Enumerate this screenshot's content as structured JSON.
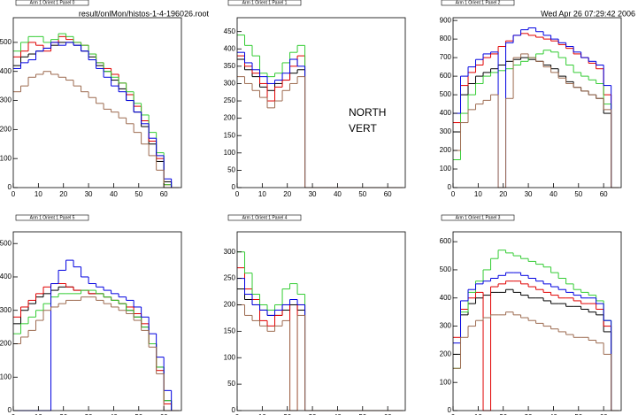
{
  "chart_data": [
    {
      "type": "histogram",
      "title": "Arm 1 Orient 1 Panel 0",
      "subtitle": "result/onlMon/histos-1-4-196026.root",
      "bins": [
        0,
        3,
        6,
        9,
        12,
        15,
        18,
        21,
        24,
        27,
        30,
        33,
        36,
        39,
        42,
        45,
        48,
        51,
        54,
        57,
        60,
        63,
        66
      ],
      "xlim": [
        0,
        67
      ],
      "xticks": [
        0,
        10,
        20,
        30,
        40,
        50,
        60
      ],
      "ylim": [
        0,
        585
      ],
      "yticks": [
        0,
        100,
        200,
        300,
        400,
        500
      ],
      "series": [
        {
          "color": "#000000",
          "values": [
            420,
            450,
            460,
            470,
            480,
            490,
            500,
            500,
            490,
            470,
            450,
            420,
            400,
            370,
            340,
            300,
            260,
            210,
            150,
            90,
            20,
            0
          ]
        },
        {
          "color": "#e00000",
          "values": [
            450,
            470,
            500,
            490,
            470,
            500,
            520,
            510,
            500,
            490,
            460,
            430,
            410,
            390,
            360,
            320,
            280,
            230,
            160,
            100,
            10,
            0
          ]
        },
        {
          "color": "#33cc33",
          "values": [
            470,
            500,
            520,
            520,
            500,
            510,
            530,
            520,
            500,
            490,
            460,
            430,
            400,
            380,
            360,
            330,
            290,
            250,
            190,
            120,
            10,
            0
          ]
        },
        {
          "color": "#0000e0",
          "values": [
            410,
            430,
            440,
            470,
            480,
            500,
            490,
            500,
            490,
            470,
            440,
            410,
            380,
            350,
            330,
            300,
            260,
            220,
            170,
            110,
            30,
            0
          ]
        },
        {
          "color": "#9c6a4f",
          "values": [
            330,
            350,
            380,
            390,
            400,
            390,
            380,
            370,
            350,
            330,
            310,
            290,
            270,
            260,
            240,
            220,
            190,
            150,
            110,
            60,
            0,
            0
          ]
        }
      ]
    },
    {
      "type": "histogram",
      "title": "Arm 1 Orient 1 Panel 1",
      "annotations": [
        "NORTH",
        "VERT"
      ],
      "bins": [
        0,
        3,
        6,
        9,
        12,
        15,
        18,
        21,
        24,
        27,
        30,
        33,
        36,
        39,
        42,
        45,
        48,
        51,
        54,
        57,
        60,
        63,
        66
      ],
      "xlim": [
        0,
        67
      ],
      "xticks": [
        0,
        10,
        20,
        30,
        40,
        50,
        60
      ],
      "ylim": [
        0,
        490
      ],
      "yticks": [
        0,
        50,
        100,
        150,
        200,
        250,
        300,
        350,
        400,
        450
      ],
      "series": [
        {
          "color": "#000000",
          "values": [
            370,
            340,
            320,
            290,
            280,
            300,
            310,
            330,
            340,
            0,
            0,
            0,
            0,
            0,
            0,
            0,
            0,
            0,
            0,
            0,
            0,
            0
          ]
        },
        {
          "color": "#e00000",
          "values": [
            380,
            350,
            330,
            300,
            250,
            290,
            310,
            350,
            380,
            0,
            0,
            0,
            0,
            0,
            0,
            0,
            0,
            0,
            0,
            0,
            0,
            0
          ]
        },
        {
          "color": "#33cc33",
          "values": [
            440,
            410,
            380,
            330,
            320,
            330,
            360,
            390,
            410,
            0,
            0,
            0,
            0,
            0,
            0,
            0,
            0,
            0,
            0,
            0,
            0,
            0
          ]
        },
        {
          "color": "#0000e0",
          "values": [
            390,
            360,
            340,
            320,
            300,
            310,
            330,
            370,
            350,
            0,
            0,
            0,
            0,
            0,
            0,
            0,
            0,
            0,
            0,
            0,
            0,
            0
          ]
        },
        {
          "color": "#9c6a4f",
          "values": [
            320,
            300,
            280,
            260,
            230,
            250,
            280,
            300,
            320,
            0,
            0,
            0,
            0,
            0,
            0,
            0,
            0,
            0,
            0,
            0,
            0,
            0
          ]
        }
      ]
    },
    {
      "type": "histogram",
      "title": "Arm 1 Orient 1 Panel 2",
      "subtitle": "Wed Apr 26 07:29:42 2006",
      "bins": [
        0,
        3,
        6,
        9,
        12,
        15,
        18,
        21,
        24,
        27,
        30,
        33,
        36,
        39,
        42,
        45,
        48,
        51,
        54,
        57,
        60,
        63,
        66
      ],
      "xlim": [
        0,
        67
      ],
      "xticks": [
        0,
        10,
        20,
        30,
        40,
        50,
        60
      ],
      "ylim": [
        0,
        915
      ],
      "yticks": [
        0,
        100,
        200,
        300,
        400,
        500,
        600,
        700,
        800,
        900
      ],
      "series": [
        {
          "color": "#000000",
          "values": [
            300,
            500,
            560,
            600,
            620,
            640,
            660,
            680,
            690,
            700,
            690,
            680,
            660,
            640,
            600,
            570,
            540,
            520,
            500,
            480,
            400,
            0
          ]
        },
        {
          "color": "#e00000",
          "values": [
            350,
            550,
            620,
            660,
            700,
            720,
            760,
            790,
            820,
            830,
            820,
            810,
            800,
            790,
            770,
            750,
            720,
            700,
            670,
            640,
            500,
            0
          ]
        },
        {
          "color": "#33cc33",
          "values": [
            150,
            400,
            500,
            560,
            600,
            620,
            630,
            640,
            660,
            680,
            700,
            720,
            740,
            730,
            700,
            660,
            620,
            600,
            580,
            560,
            450,
            0
          ]
        },
        {
          "color": "#0000e0",
          "values": [
            400,
            600,
            650,
            690,
            720,
            730,
            0,
            780,
            820,
            850,
            860,
            840,
            820,
            800,
            780,
            760,
            730,
            700,
            680,
            660,
            550,
            0
          ]
        },
        {
          "color": "#9c6a4f",
          "values": [
            200,
            350,
            420,
            450,
            470,
            500,
            0,
            480,
            700,
            720,
            700,
            680,
            650,
            620,
            590,
            560,
            540,
            520,
            500,
            480,
            420,
            0
          ]
        }
      ]
    },
    {
      "type": "histogram",
      "title": "Arm 1 Orient 1 Panel 5",
      "bins": [
        0,
        3,
        6,
        9,
        12,
        15,
        18,
        21,
        24,
        27,
        30,
        33,
        36,
        39,
        42,
        45,
        48,
        51,
        54,
        57,
        60,
        63,
        66
      ],
      "xlim": [
        0,
        67
      ],
      "xticks": [
        0,
        10,
        20,
        30,
        40,
        50,
        60
      ],
      "ylim": [
        0,
        535
      ],
      "yticks": [
        0,
        100,
        200,
        300,
        400,
        500
      ],
      "series": [
        {
          "color": "#000000",
          "values": [
            260,
            300,
            320,
            340,
            350,
            360,
            370,
            370,
            360,
            360,
            350,
            350,
            340,
            330,
            320,
            300,
            280,
            250,
            200,
            130,
            30,
            0
          ]
        },
        {
          "color": "#e00000",
          "values": [
            280,
            310,
            330,
            350,
            370,
            380,
            380,
            370,
            360,
            360,
            350,
            350,
            340,
            330,
            320,
            310,
            290,
            260,
            200,
            120,
            20,
            0
          ]
        },
        {
          "color": "#33cc33",
          "values": [
            230,
            260,
            280,
            300,
            320,
            340,
            350,
            350,
            350,
            360,
            360,
            350,
            340,
            330,
            320,
            300,
            280,
            250,
            200,
            130,
            30,
            0
          ]
        },
        {
          "color": "#0000e0",
          "values": [
            0,
            0,
            0,
            0,
            0,
            380,
            420,
            450,
            430,
            400,
            380,
            370,
            360,
            350,
            340,
            330,
            310,
            280,
            230,
            160,
            60,
            0
          ]
        },
        {
          "color": "#9c6a4f",
          "values": [
            200,
            220,
            240,
            270,
            300,
            310,
            320,
            330,
            330,
            340,
            340,
            330,
            320,
            310,
            300,
            290,
            270,
            240,
            190,
            110,
            0,
            0
          ]
        }
      ]
    },
    {
      "type": "histogram",
      "title": "Arm 1 Orient 1 Panel 4",
      "bins": [
        0,
        3,
        6,
        9,
        12,
        15,
        18,
        21,
        24,
        27,
        30,
        33,
        36,
        39,
        42,
        45,
        48,
        51,
        54,
        57,
        60,
        63,
        66
      ],
      "xlim": [
        0,
        67
      ],
      "xticks": [
        0,
        10,
        20,
        30,
        40,
        50,
        60
      ],
      "ylim": [
        0,
        338
      ],
      "yticks": [
        0,
        50,
        100,
        150,
        200,
        250,
        300
      ],
      "series": [
        {
          "color": "#000000",
          "values": [
            230,
            210,
            200,
            190,
            180,
            180,
            190,
            200,
            190,
            0,
            0,
            0,
            0,
            0,
            0,
            0,
            0,
            0,
            0,
            0,
            0,
            0
          ]
        },
        {
          "color": "#e00000",
          "values": [
            270,
            230,
            210,
            170,
            160,
            180,
            200,
            0,
            200,
            0,
            0,
            0,
            0,
            0,
            0,
            0,
            0,
            0,
            0,
            0,
            0,
            0
          ]
        },
        {
          "color": "#33cc33",
          "values": [
            300,
            260,
            220,
            200,
            190,
            200,
            230,
            240,
            220,
            0,
            0,
            0,
            0,
            0,
            0,
            0,
            0,
            0,
            0,
            0,
            0,
            0
          ]
        },
        {
          "color": "#0000e0",
          "values": [
            250,
            220,
            200,
            190,
            180,
            190,
            200,
            210,
            200,
            0,
            0,
            0,
            0,
            0,
            0,
            0,
            0,
            0,
            0,
            0,
            0,
            0
          ]
        },
        {
          "color": "#9c6a4f",
          "values": [
            200,
            180,
            170,
            160,
            150,
            160,
            170,
            0,
            180,
            0,
            0,
            0,
            0,
            0,
            0,
            0,
            0,
            0,
            0,
            0,
            0,
            0
          ]
        }
      ]
    },
    {
      "type": "histogram",
      "title": "Arm 1 Orient 1 Panel 3",
      "bins": [
        0,
        3,
        6,
        9,
        12,
        15,
        18,
        21,
        24,
        27,
        30,
        33,
        36,
        39,
        42,
        45,
        48,
        51,
        54,
        57,
        60,
        63,
        66
      ],
      "xlim": [
        0,
        67
      ],
      "xticks": [
        0,
        10,
        20,
        30,
        40,
        50,
        60
      ],
      "ylim": [
        0,
        635
      ],
      "yticks": [
        0,
        100,
        200,
        300,
        400,
        500,
        600
      ],
      "series": [
        {
          "color": "#000000",
          "values": [
            200,
            340,
            380,
            400,
            410,
            420,
            420,
            430,
            420,
            410,
            400,
            400,
            390,
            380,
            380,
            370,
            370,
            360,
            350,
            340,
            280,
            0
          ]
        },
        {
          "color": "#e00000",
          "values": [
            260,
            360,
            400,
            420,
            0,
            440,
            450,
            460,
            460,
            450,
            440,
            430,
            420,
            410,
            400,
            400,
            390,
            380,
            380,
            360,
            300,
            0
          ]
        },
        {
          "color": "#33cc33",
          "values": [
            150,
            350,
            420,
            460,
            500,
            540,
            570,
            560,
            550,
            540,
            530,
            520,
            510,
            490,
            470,
            450,
            430,
            420,
            410,
            390,
            320,
            0
          ]
        },
        {
          "color": "#0000e0",
          "values": [
            240,
            390,
            430,
            450,
            460,
            470,
            480,
            490,
            490,
            480,
            470,
            460,
            450,
            440,
            430,
            420,
            410,
            400,
            400,
            380,
            320,
            0
          ]
        },
        {
          "color": "#9c6a4f",
          "values": [
            150,
            260,
            300,
            320,
            330,
            340,
            340,
            350,
            340,
            330,
            320,
            310,
            300,
            290,
            280,
            270,
            260,
            260,
            250,
            240,
            200,
            0
          ]
        }
      ]
    }
  ]
}
